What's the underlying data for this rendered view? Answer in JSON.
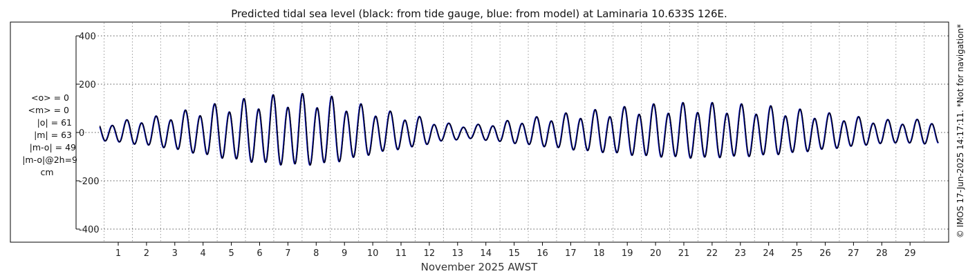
{
  "chart_data": {
    "type": "line",
    "title": "Predicted tidal sea level (black: from tide gauge, blue: from model) at Laminaria 10.633S 126E.",
    "xlabel": "November 2025 AWST",
    "ylabel": "",
    "xlim": [
      0.35,
      30.0
    ],
    "ylim": [
      -440,
      440
    ],
    "x_ticks": [
      1,
      2,
      3,
      4,
      5,
      6,
      7,
      8,
      9,
      10,
      11,
      12,
      13,
      14,
      15,
      16,
      17,
      18,
      19,
      20,
      21,
      22,
      23,
      24,
      25,
      26,
      27,
      28,
      29
    ],
    "y_ticks": [
      400,
      200,
      0,
      -200,
      -400
    ],
    "y_tick_labels": [
      "400",
      "200",
      "0",
      "-200",
      "-400"
    ],
    "grid": true,
    "series": [
      {
        "name": "from tide gauge",
        "color": "#000000",
        "daily_peak_amplitude": [
          [
            0.5,
            40
          ],
          [
            1.5,
            55
          ],
          [
            2.5,
            70
          ],
          [
            3.5,
            95
          ],
          [
            4.5,
            120
          ],
          [
            5.5,
            140
          ],
          [
            6.5,
            155
          ],
          [
            7.5,
            160
          ],
          [
            8.5,
            150
          ],
          [
            9.5,
            120
          ],
          [
            10.5,
            90
          ],
          [
            11.5,
            70
          ],
          [
            12.5,
            40
          ],
          [
            13.5,
            30
          ],
          [
            14.5,
            45
          ],
          [
            15.5,
            60
          ],
          [
            16.5,
            75
          ],
          [
            17.5,
            90
          ],
          [
            18.5,
            100
          ],
          [
            19.5,
            115
          ],
          [
            20.5,
            120
          ],
          [
            21.5,
            125
          ],
          [
            22.5,
            120
          ],
          [
            23.5,
            115
          ],
          [
            24.5,
            105
          ],
          [
            25.5,
            90
          ],
          [
            26.5,
            75
          ],
          [
            27.5,
            60
          ],
          [
            28.5,
            50
          ],
          [
            29.5,
            55
          ],
          [
            30.0,
            55
          ]
        ]
      },
      {
        "name": "from model",
        "color": "#0a14c8",
        "daily_peak_amplitude": [
          [
            0.5,
            40
          ],
          [
            1.5,
            55
          ],
          [
            2.5,
            70
          ],
          [
            3.5,
            95
          ],
          [
            4.5,
            120
          ],
          [
            5.5,
            140
          ],
          [
            6.5,
            155
          ],
          [
            7.5,
            160
          ],
          [
            8.5,
            150
          ],
          [
            9.5,
            120
          ],
          [
            10.5,
            90
          ],
          [
            11.5,
            70
          ],
          [
            12.5,
            40
          ],
          [
            13.5,
            30
          ],
          [
            14.5,
            45
          ],
          [
            15.5,
            60
          ],
          [
            16.5,
            75
          ],
          [
            17.5,
            90
          ],
          [
            18.5,
            100
          ],
          [
            19.5,
            115
          ],
          [
            20.5,
            120
          ],
          [
            21.5,
            125
          ],
          [
            22.5,
            120
          ],
          [
            23.5,
            115
          ],
          [
            24.5,
            105
          ],
          [
            25.5,
            90
          ],
          [
            26.5,
            75
          ],
          [
            27.5,
            60
          ],
          [
            28.5,
            50
          ],
          [
            29.5,
            55
          ],
          [
            30.0,
            55
          ]
        ]
      }
    ],
    "stats": [
      "<o> = 0",
      "<m> = 0",
      "|o| = 61",
      "|m| = 63",
      "|m-o| = 49",
      "|m-o|@2h=9",
      "cm"
    ],
    "credit": "© IMOS 17-Jun-2025 14:17:11. *Not for navigation*"
  }
}
